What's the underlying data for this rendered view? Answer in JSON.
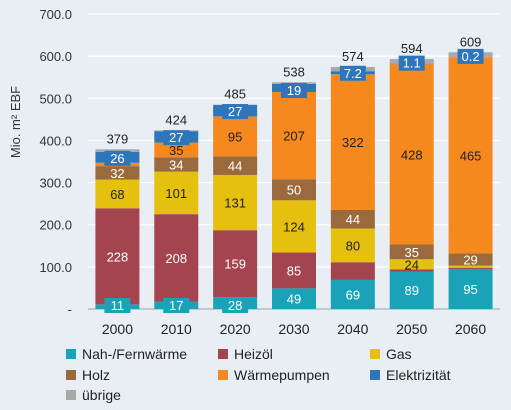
{
  "chart_data": {
    "type": "bar",
    "stacked": true,
    "ylabel": "Mio. m² EBF",
    "yticks": [
      "-",
      "100.0",
      "200.0",
      "300.0",
      "400.0",
      "500.0",
      "600.0",
      "700.0"
    ],
    "ylim": [
      0,
      700
    ],
    "grid": true,
    "legend_position": "bottom",
    "categories": [
      "2000",
      "2010",
      "2020",
      "2030",
      "2040",
      "2050",
      "2060"
    ],
    "totals": [
      "379",
      "424",
      "485",
      "538",
      "574",
      "594",
      "609"
    ],
    "series": [
      {
        "name": "Nah-/Fernwärme",
        "color": "#1aa3b8",
        "label_color": "#ffffff",
        "values": [
          11,
          17,
          28,
          49,
          69,
          89,
          95
        ],
        "labels": [
          "11",
          "17",
          "28",
          "49",
          "69",
          "89",
          "95"
        ]
      },
      {
        "name": "Heizöl",
        "color": "#a3444f",
        "label_color": "#ffffff",
        "values": [
          228,
          208,
          159,
          85,
          42,
          5,
          3
        ],
        "labels": [
          "228",
          "208",
          "159",
          "85",
          "",
          "",
          ""
        ]
      },
      {
        "name": "Gas",
        "color": "#e6c00e",
        "label_color": "#222222",
        "values": [
          68,
          101,
          131,
          124,
          80,
          24,
          5
        ],
        "labels": [
          "68",
          "101",
          "131",
          "124",
          "80",
          "24",
          ""
        ]
      },
      {
        "name": "Holz",
        "color": "#9b6a3c",
        "label_color": "#ffffff",
        "values": [
          32,
          34,
          44,
          50,
          44,
          35,
          29
        ],
        "labels": [
          "32",
          "34",
          "44",
          "50",
          "44",
          "35",
          "29"
        ]
      },
      {
        "name": "Wärmepumpen",
        "color": "#f5891e",
        "label_color": "#222222",
        "values": [
          8,
          35,
          95,
          207,
          322,
          428,
          465
        ],
        "labels": [
          "",
          "35",
          "95",
          "207",
          "322",
          "428",
          "465"
        ]
      },
      {
        "name": "Elektrizität",
        "color": "#2e76bb",
        "label_color": "#ffffff",
        "values": [
          26,
          27,
          27,
          19,
          7.2,
          1.1,
          0.2
        ],
        "labels": [
          "26",
          "27",
          "27",
          "19",
          "7.2",
          "1.1",
          "0.2"
        ]
      },
      {
        "name": "übrige",
        "color": "#a9a9a9",
        "label_color": "#222222",
        "values": [
          6,
          2,
          1,
          4,
          10,
          11,
          12
        ],
        "labels": [
          "",
          "",
          "",
          "",
          "",
          "",
          ""
        ]
      }
    ]
  }
}
